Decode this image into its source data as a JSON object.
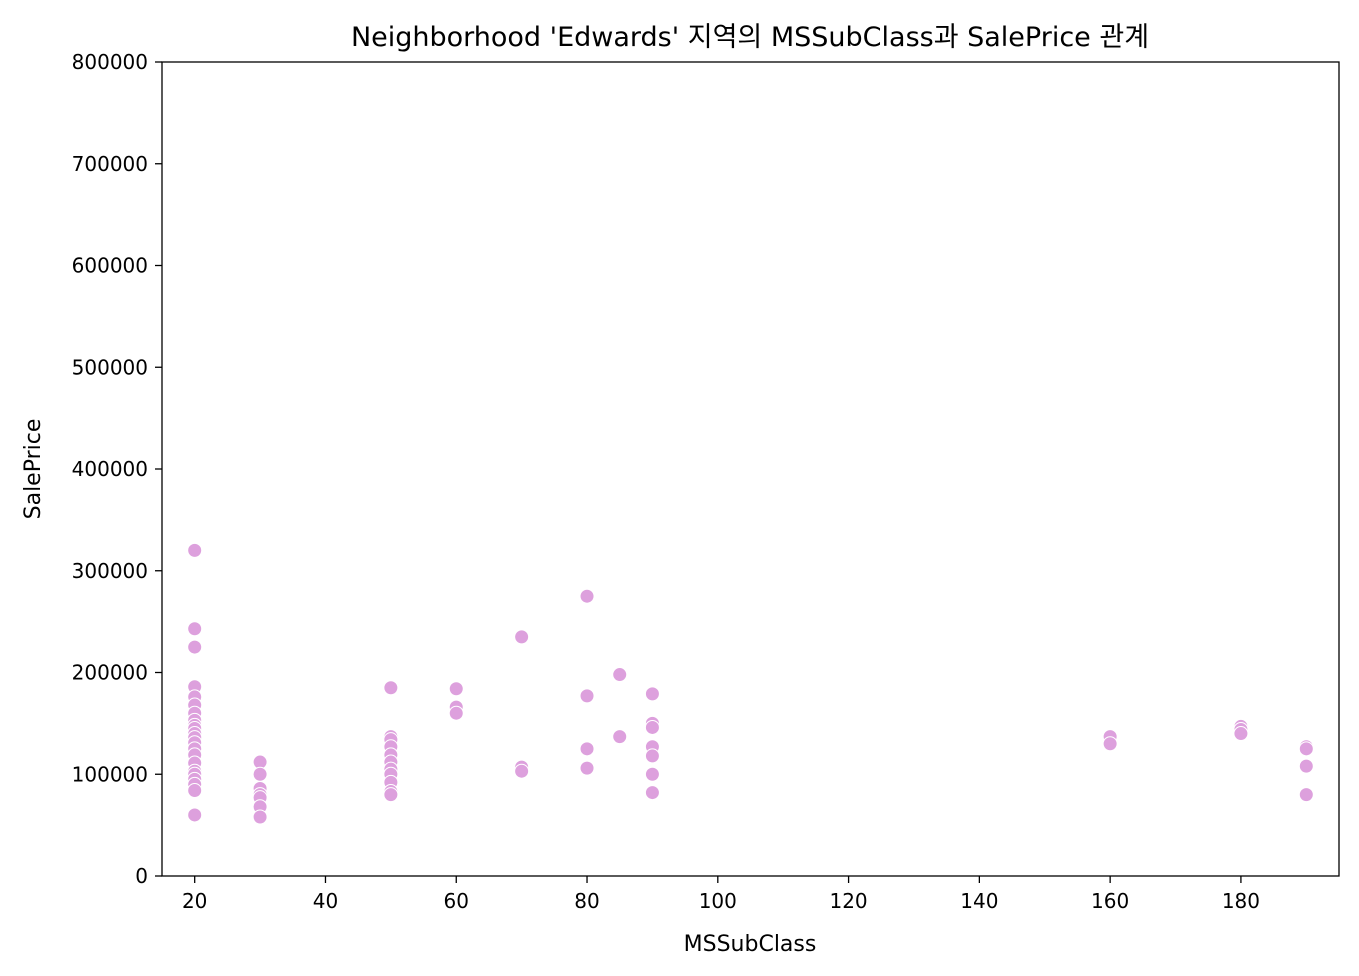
{
  "chart_data": {
    "type": "scatter",
    "title": "Neighborhood 'Edwards' 지역의 MSSubClass과 SalePrice 관계",
    "xlabel": "MSSubClass",
    "ylabel": "SalePrice",
    "xlim": [
      15,
      195
    ],
    "ylim": [
      0,
      800000
    ],
    "xticks": [
      20,
      40,
      60,
      80,
      100,
      120,
      140,
      160,
      180
    ],
    "yticks": [
      0,
      100000,
      200000,
      300000,
      400000,
      500000,
      600000,
      700000,
      800000
    ],
    "grid": false,
    "marker_color": "#dda0dd",
    "marker_edge_color": "#ffffff",
    "points": [
      {
        "x": 20,
        "y": 320000
      },
      {
        "x": 20,
        "y": 243000
      },
      {
        "x": 20,
        "y": 225000
      },
      {
        "x": 20,
        "y": 186000
      },
      {
        "x": 20,
        "y": 176000
      },
      {
        "x": 20,
        "y": 168000
      },
      {
        "x": 20,
        "y": 160000
      },
      {
        "x": 20,
        "y": 153000
      },
      {
        "x": 20,
        "y": 148000
      },
      {
        "x": 20,
        "y": 145000
      },
      {
        "x": 20,
        "y": 140000
      },
      {
        "x": 20,
        "y": 136000
      },
      {
        "x": 20,
        "y": 131000
      },
      {
        "x": 20,
        "y": 125000
      },
      {
        "x": 20,
        "y": 119000
      },
      {
        "x": 20,
        "y": 111000
      },
      {
        "x": 20,
        "y": 103000
      },
      {
        "x": 20,
        "y": 100000
      },
      {
        "x": 20,
        "y": 95000
      },
      {
        "x": 20,
        "y": 90000
      },
      {
        "x": 20,
        "y": 84000
      },
      {
        "x": 20,
        "y": 60000
      },
      {
        "x": 30,
        "y": 112000
      },
      {
        "x": 30,
        "y": 100000
      },
      {
        "x": 30,
        "y": 86000
      },
      {
        "x": 30,
        "y": 80000
      },
      {
        "x": 30,
        "y": 77000
      },
      {
        "x": 30,
        "y": 68000
      },
      {
        "x": 30,
        "y": 58000
      },
      {
        "x": 50,
        "y": 185000
      },
      {
        "x": 50,
        "y": 137000
      },
      {
        "x": 50,
        "y": 134000
      },
      {
        "x": 50,
        "y": 127000
      },
      {
        "x": 50,
        "y": 119000
      },
      {
        "x": 50,
        "y": 112000
      },
      {
        "x": 50,
        "y": 105000
      },
      {
        "x": 50,
        "y": 100000
      },
      {
        "x": 50,
        "y": 92000
      },
      {
        "x": 50,
        "y": 83000
      },
      {
        "x": 50,
        "y": 80000
      },
      {
        "x": 60,
        "y": 184000
      },
      {
        "x": 60,
        "y": 166000
      },
      {
        "x": 60,
        "y": 160000
      },
      {
        "x": 70,
        "y": 235000
      },
      {
        "x": 70,
        "y": 107000
      },
      {
        "x": 70,
        "y": 103000
      },
      {
        "x": 80,
        "y": 275000
      },
      {
        "x": 80,
        "y": 177000
      },
      {
        "x": 80,
        "y": 125000
      },
      {
        "x": 80,
        "y": 106000
      },
      {
        "x": 85,
        "y": 198000
      },
      {
        "x": 85,
        "y": 137000
      },
      {
        "x": 90,
        "y": 179000
      },
      {
        "x": 90,
        "y": 150000
      },
      {
        "x": 90,
        "y": 146000
      },
      {
        "x": 90,
        "y": 127000
      },
      {
        "x": 90,
        "y": 118000
      },
      {
        "x": 90,
        "y": 100000
      },
      {
        "x": 90,
        "y": 82000
      },
      {
        "x": 160,
        "y": 137000
      },
      {
        "x": 160,
        "y": 130000
      },
      {
        "x": 180,
        "y": 147000
      },
      {
        "x": 180,
        "y": 144000
      },
      {
        "x": 180,
        "y": 140000
      },
      {
        "x": 190,
        "y": 127000
      },
      {
        "x": 190,
        "y": 125000
      },
      {
        "x": 190,
        "y": 108000
      },
      {
        "x": 190,
        "y": 80000
      }
    ]
  }
}
